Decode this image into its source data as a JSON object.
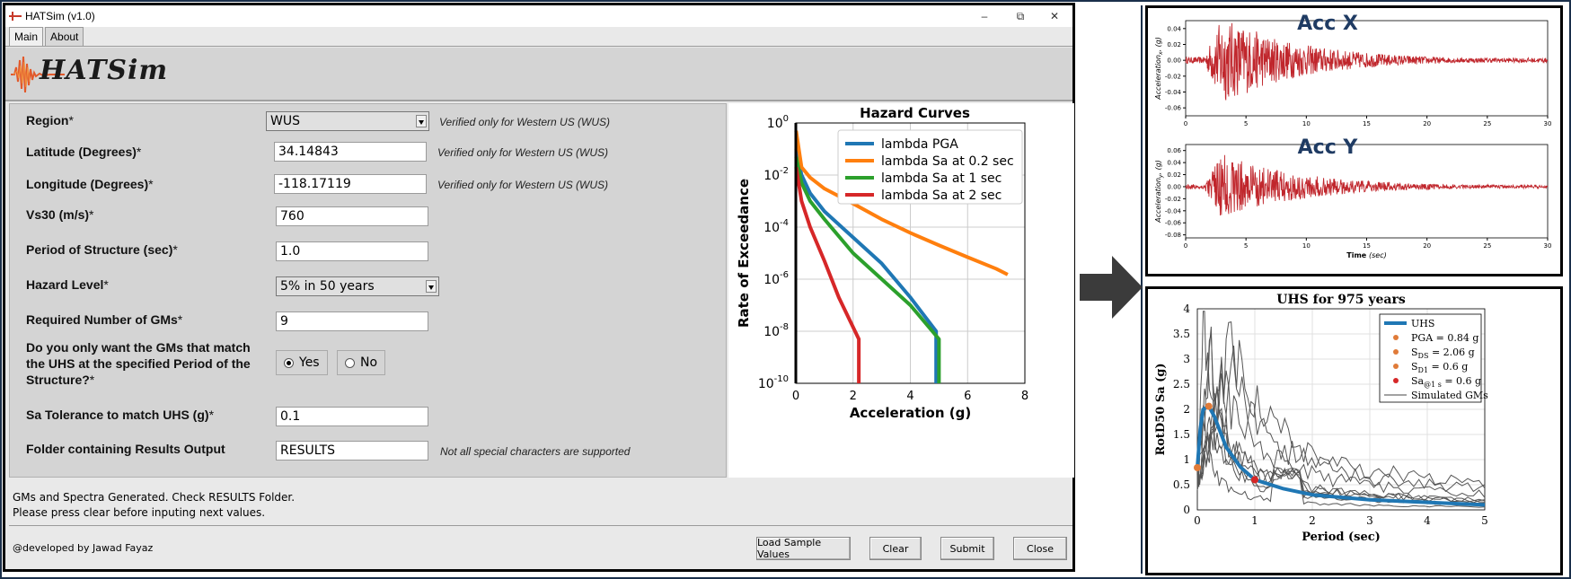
{
  "window": {
    "title": "HATSim (v1.0)",
    "controls": {
      "minimize": "–",
      "maximize": "⧉",
      "close": "✕"
    }
  },
  "tabs": [
    {
      "label": "Main"
    },
    {
      "label": "About"
    }
  ],
  "logo": {
    "text": "HATSim"
  },
  "form": {
    "region": {
      "label": "Region",
      "star": "*",
      "value": "WUS",
      "note": "Verified only for Western US (WUS)"
    },
    "latitude": {
      "label": "Latitude (Degrees)",
      "star": "*",
      "value": "34.14843",
      "note": "Verified only for Western US (WUS)"
    },
    "longitude": {
      "label": "Longitude (Degrees)",
      "star": "*",
      "value": "-118.17119",
      "note": "Verified only for Western US (WUS)"
    },
    "vs30": {
      "label": "Vs30 (m/s)",
      "star": "*",
      "value": "760"
    },
    "period": {
      "label": "Period of Structure (sec)",
      "star": "*",
      "value": "1.0"
    },
    "hazard": {
      "label": "Hazard Level",
      "star": "*",
      "value": "5% in 50 years"
    },
    "num_gms": {
      "label": "Required Number of GMs",
      "star": "*",
      "value": "9"
    },
    "match_uhs": {
      "label_line1": "Do you only want the GMs that match",
      "label_line2": "the UHS at the specified Period of the",
      "label_line3": "Structure?",
      "star": "*",
      "yes": "Yes",
      "no": "No"
    },
    "sa_tol": {
      "label": "Sa Tolerance to match UHS (g)",
      "star": "*",
      "value": "0.1"
    },
    "folder": {
      "label": "Folder containing Results Output",
      "value": "RESULTS",
      "note": "Not all special characters are supported"
    }
  },
  "status": {
    "line1": "GMs and Spectra Generated. Check RESULTS Folder.",
    "line2": "Please press clear before inputing next values."
  },
  "footer": {
    "credit": "@developed by Jawad Fayaz"
  },
  "buttons": {
    "load": "Load Sample Values",
    "clear": "Clear",
    "submit": "Submit",
    "close": "Close"
  },
  "chart_data": [
    {
      "type": "line",
      "title": "Hazard Curves",
      "xlabel": "Acceleration (g)",
      "ylabel": "Rate of Exceedance",
      "xlim": [
        0,
        8
      ],
      "ylim": [
        1e-10,
        1
      ],
      "yscale": "log",
      "xticks": [
        "0",
        "2",
        "4",
        "6",
        "8"
      ],
      "yticks_exp": [
        0,
        -2,
        -4,
        -6,
        -8,
        -10
      ],
      "legend": "top-right",
      "grid": true,
      "series": [
        {
          "name": "lambda PGA",
          "color": "#1f77b4",
          "x": [
            0.01,
            0.2,
            0.5,
            1.0,
            2.0,
            3.0,
            4.0,
            4.9,
            4.9
          ],
          "y": [
            0.1,
            0.01,
            0.002,
            0.0004,
            4e-05,
            4e-06,
            2e-07,
            1e-08,
            1e-10
          ]
        },
        {
          "name": "lambda Sa at 0.2 sec",
          "color": "#ff7f0e",
          "x": [
            0.01,
            0.2,
            0.5,
            1.0,
            2.0,
            3.0,
            4.0,
            5.0,
            6.0,
            7.0,
            7.4
          ],
          "y": [
            0.5,
            0.02,
            0.008,
            0.003,
            0.0008,
            0.0002,
            6e-05,
            2e-05,
            7e-06,
            2.5e-06,
            1.5e-06
          ]
        },
        {
          "name": "lambda Sa at 1 sec",
          "color": "#2ca02c",
          "x": [
            0.01,
            0.2,
            0.5,
            1.0,
            2.0,
            3.0,
            4.0,
            5.0,
            5.0
          ],
          "y": [
            0.05,
            0.005,
            0.001,
            0.0002,
            1e-05,
            1e-06,
            1e-07,
            5e-09,
            1e-10
          ]
        },
        {
          "name": "lambda Sa at 2 sec",
          "color": "#d62728",
          "x": [
            0.01,
            0.2,
            0.5,
            1.0,
            1.5,
            2.2,
            2.2
          ],
          "y": [
            0.02,
            0.001,
            0.0001,
            5e-06,
            2e-07,
            5e-09,
            1e-10
          ]
        }
      ]
    },
    {
      "type": "line",
      "title": "Acc X",
      "xlabel": "",
      "ylabel": "Acceleration",
      "ylabel_sub": "x",
      "ylabel_unit": "(g)",
      "xlim": [
        0,
        30
      ],
      "ylim": [
        -0.07,
        0.05
      ],
      "xticks": [
        "0",
        "5",
        "10",
        "15",
        "20",
        "25",
        "30"
      ],
      "yticks": [
        "0.04",
        "0.02",
        "0.00",
        "-0.02",
        "-0.04",
        "-0.06"
      ],
      "color": "#c0262c"
    },
    {
      "type": "line",
      "title": "Acc Y",
      "xlabel": "Time",
      "xlabel_unit": "(sec)",
      "ylabel": "Acceleration",
      "ylabel_sub": "y",
      "ylabel_unit": "(g)",
      "xlim": [
        0,
        30
      ],
      "ylim": [
        -0.085,
        0.07
      ],
      "xticks": [
        "0",
        "5",
        "10",
        "15",
        "20",
        "25",
        "30"
      ],
      "yticks": [
        "0.06",
        "0.04",
        "0.02",
        "0.00",
        "-0.02",
        "-0.04",
        "-0.06",
        "-0.08"
      ],
      "color": "#c0262c"
    },
    {
      "type": "line",
      "title": "UHS for 975 years",
      "xlabel": "Period (sec)",
      "ylabel": "RotD50 Sa (g)",
      "xlim": [
        0,
        5
      ],
      "ylim": [
        0,
        4
      ],
      "xticks": [
        "0",
        "1",
        "2",
        "3",
        "4",
        "5"
      ],
      "yticks": [
        "0",
        "0.5",
        "1",
        "1.5",
        "2",
        "2.5",
        "3",
        "3.5",
        "4"
      ],
      "grid": true,
      "legend": "top-right",
      "legend_entries": [
        {
          "label": "UHS",
          "color": "#1f77b4",
          "kind": "line"
        },
        {
          "label": "PGA = 0.84 g",
          "color": "#e07b39",
          "kind": "dot"
        },
        {
          "label": "S",
          "sub": "DS",
          "after": " = 2.06 g",
          "color": "#e07b39",
          "kind": "dot"
        },
        {
          "label": "S",
          "sub": "D1",
          "after": " = 0.6 g",
          "color": "#e07b39",
          "kind": "dot"
        },
        {
          "label": "Sa",
          "sub": "@1 s",
          "after": " = 0.6 g",
          "color": "#d62728",
          "kind": "dot"
        },
        {
          "label": "Simulated GMs",
          "color": "#444444",
          "kind": "line"
        }
      ],
      "uhs": {
        "x": [
          0,
          0.05,
          0.1,
          0.2,
          0.3,
          0.5,
          0.75,
          1.0,
          1.5,
          2.0,
          3.0,
          4.0,
          5.0
        ],
        "y": [
          0.84,
          1.6,
          2.0,
          2.06,
          1.85,
          1.25,
          0.85,
          0.6,
          0.42,
          0.3,
          0.2,
          0.15,
          0.1
        ]
      },
      "points": [
        {
          "x": 0,
          "y": 0.84
        },
        {
          "x": 0.2,
          "y": 2.06
        },
        {
          "x": 1.0,
          "y": 0.6
        },
        {
          "x": 1.0,
          "y": 0.6
        }
      ]
    }
  ]
}
